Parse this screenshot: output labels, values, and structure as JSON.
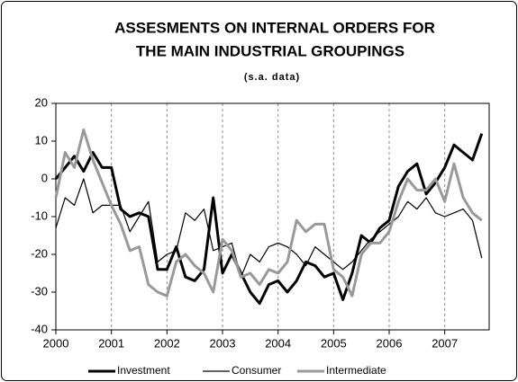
{
  "chart_data": {
    "type": "line",
    "title": [
      "ASSESMENTS ON INTERNAL ORDERS FOR",
      "THE MAIN INDUSTRIAL GROUPINGS"
    ],
    "subtitle": "(s.a. data)",
    "x": [
      2000,
      2000.167,
      2000.333,
      2000.5,
      2000.667,
      2000.833,
      2001,
      2001.167,
      2001.333,
      2001.5,
      2001.667,
      2001.833,
      2002,
      2002.167,
      2002.333,
      2002.5,
      2002.667,
      2002.833,
      2003,
      2003.167,
      2003.333,
      2003.5,
      2003.667,
      2003.833,
      2004,
      2004.167,
      2004.333,
      2004.5,
      2004.667,
      2004.833,
      2005,
      2005.167,
      2005.333,
      2005.5,
      2005.667,
      2005.833,
      2006,
      2006.167,
      2006.333,
      2006.5,
      2006.667,
      2006.833,
      2007,
      2007.167,
      2007.333,
      2007.5,
      2007.667
    ],
    "series": [
      {
        "name": "Investment",
        "color": "#000000",
        "line_width": 3,
        "values": [
          0,
          3,
          6,
          2,
          7,
          3,
          3,
          -8,
          -10,
          -9,
          -10,
          -24,
          -24,
          -18,
          -26,
          -27,
          -24,
          -5,
          -25,
          -20,
          -25,
          -30,
          -33,
          -28,
          -27,
          -30,
          -27,
          -22,
          -23,
          -26,
          -25,
          -32,
          -25,
          -15,
          -17,
          -13,
          -11,
          -2,
          2,
          4,
          -4,
          -1,
          3,
          9,
          7,
          5,
          12
        ]
      },
      {
        "name": "Consumer",
        "color": "#000000",
        "line_width": 1.2,
        "values": [
          -13,
          -5,
          -7,
          0,
          -9,
          -7,
          -7,
          -7,
          -14,
          -10,
          -6,
          -22,
          -20,
          -19,
          -9,
          -11,
          -8,
          -19,
          -18,
          -17,
          -26,
          -20,
          -22,
          -18,
          -17,
          -18,
          -20,
          -23,
          -18,
          -20,
          -22,
          -24,
          -22,
          -19,
          -16,
          -14,
          -12,
          -10,
          -6,
          -8,
          -5,
          -9,
          -10,
          -9,
          -8,
          -11,
          -21
        ]
      },
      {
        "name": "Intermediate",
        "color": "#999999",
        "line_width": 3,
        "values": [
          -5,
          7,
          3,
          13,
          5,
          -1,
          -7,
          -12,
          -19,
          -18,
          -28,
          -30,
          -31,
          -22,
          -20,
          -23,
          -25,
          -30,
          -16,
          -19,
          -26,
          -25,
          -28,
          -24,
          -25,
          -22,
          -11,
          -14,
          -12,
          -12,
          -24,
          -26,
          -31,
          -20,
          -17,
          -17,
          -14,
          -6,
          0,
          -3,
          -3,
          0,
          -6,
          4,
          -5,
          -9,
          -11
        ]
      }
    ],
    "xlim": [
      2000,
      2007.8
    ],
    "xticks": [
      2000,
      2001,
      2002,
      2003,
      2004,
      2005,
      2006,
      2007
    ],
    "ylim": [
      -40,
      20
    ],
    "yticks": [
      -40,
      -30,
      -20,
      -10,
      0,
      10,
      20
    ],
    "grid": "x",
    "legend": "bottom"
  }
}
